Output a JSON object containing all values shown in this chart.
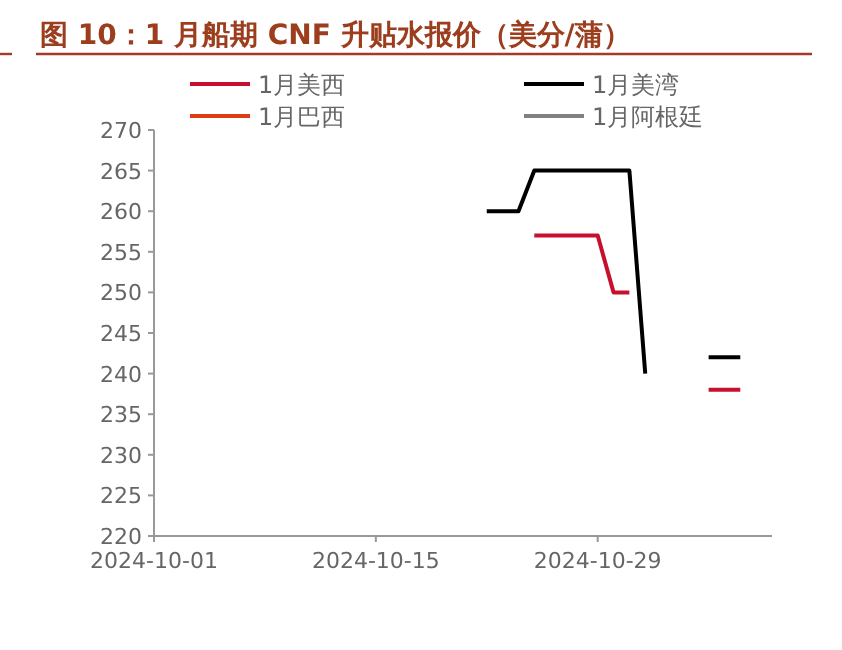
{
  "chart_data": {
    "type": "line",
    "title": "图 10：1 月船期 CNF 升贴水报价（美分/蒲）",
    "xlim": [
      "2024-10-01",
      "2024-11-09"
    ],
    "xticks": [
      "2024-10-01",
      "2024-10-15",
      "2024-10-29"
    ],
    "ylim": [
      220,
      270
    ],
    "yticks": [
      220,
      225,
      230,
      235,
      240,
      245,
      250,
      255,
      260,
      265,
      270
    ],
    "grid": false,
    "legend": "top",
    "marker": "none",
    "line_style": "solid",
    "series": [
      {
        "name": "1月美西",
        "color": "#c8102e",
        "x": [
          "2024-10-25",
          "2024-10-29",
          "2024-10-30",
          "2024-10-31",
          null,
          "2024-11-05",
          "2024-11-07"
        ],
        "values": [
          257,
          257,
          250,
          250,
          null,
          238,
          238
        ]
      },
      {
        "name": "1月美湾",
        "color": "#000000",
        "x": [
          "2024-10-22",
          "2024-10-24",
          "2024-10-25",
          "2024-10-31",
          "2024-11-01",
          null,
          "2024-11-05",
          "2024-11-07"
        ],
        "values": [
          260,
          260,
          265,
          265,
          240,
          null,
          242,
          242
        ]
      },
      {
        "name": "1月巴西",
        "color": "#e03c14"
      },
      {
        "name": "1月阿根廷",
        "color": "#808080"
      }
    ]
  }
}
